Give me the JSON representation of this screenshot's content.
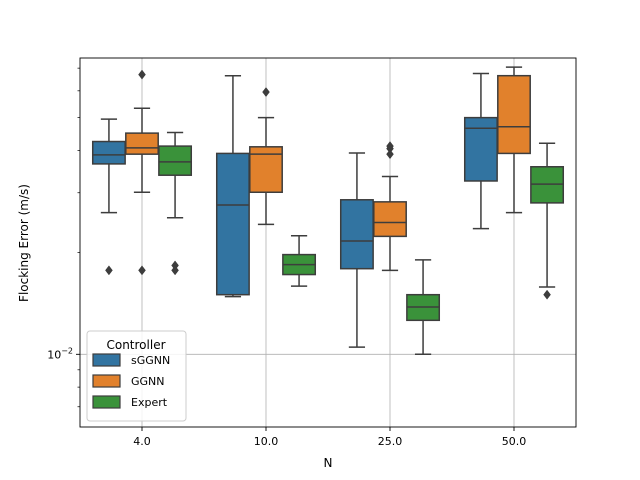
{
  "chart_data": {
    "type": "boxplot",
    "xlabel": "N",
    "ylabel": "Flocking Error (m/s)",
    "yscale": "log",
    "ylim": [
      0.0061,
      0.075
    ],
    "ytick_label": "10^-2",
    "ytick_value": 0.01,
    "grid": true,
    "legend_title": "Controller",
    "legend_position": "lower-left",
    "categories": [
      "4.0",
      "10.0",
      "25.0",
      "50.0"
    ],
    "series": [
      {
        "name": "sGGNN",
        "color": "#3274a1",
        "boxes": [
          {
            "whislo": 0.0262,
            "q1": 0.0365,
            "med": 0.0388,
            "q3": 0.0425,
            "whishi": 0.0495,
            "fliers": [
              0.0177
            ]
          },
          {
            "whislo": 0.0148,
            "q1": 0.015,
            "med": 0.0276,
            "q3": 0.0392,
            "whishi": 0.0665,
            "fliers": []
          },
          {
            "whislo": 0.0105,
            "q1": 0.0179,
            "med": 0.0216,
            "q3": 0.0286,
            "whishi": 0.0393,
            "fliers": []
          },
          {
            "whislo": 0.0235,
            "q1": 0.0325,
            "med": 0.0465,
            "q3": 0.05,
            "whishi": 0.0675,
            "fliers": []
          }
        ]
      },
      {
        "name": "GGNN",
        "color": "#e1812c",
        "boxes": [
          {
            "whislo": 0.0301,
            "q1": 0.039,
            "med": 0.0407,
            "q3": 0.045,
            "whishi": 0.0533,
            "fliers": [
              0.0177,
              0.067
            ]
          },
          {
            "whislo": 0.0242,
            "q1": 0.0301,
            "med": 0.039,
            "q3": 0.041,
            "whishi": 0.05,
            "fliers": [
              0.0595
            ]
          },
          {
            "whislo": 0.0177,
            "q1": 0.0223,
            "med": 0.0245,
            "q3": 0.0282,
            "whishi": 0.0335,
            "fliers": [
              0.039,
              0.0405,
              0.0412
            ]
          },
          {
            "whislo": 0.0262,
            "q1": 0.0392,
            "med": 0.047,
            "q3": 0.0665,
            "whishi": 0.0705,
            "fliers": []
          }
        ]
      },
      {
        "name": "Expert",
        "color": "#3a923a",
        "boxes": [
          {
            "whislo": 0.0253,
            "q1": 0.0338,
            "med": 0.037,
            "q3": 0.0412,
            "whishi": 0.0452,
            "fliers": [
              0.0177,
              0.0183
            ]
          },
          {
            "whislo": 0.0159,
            "q1": 0.0172,
            "med": 0.0184,
            "q3": 0.0197,
            "whishi": 0.0224,
            "fliers": []
          },
          {
            "whislo": 0.01,
            "q1": 0.0126,
            "med": 0.0138,
            "q3": 0.015,
            "whishi": 0.019,
            "fliers": []
          },
          {
            "whislo": 0.0158,
            "q1": 0.028,
            "med": 0.0318,
            "q3": 0.0358,
            "whishi": 0.042,
            "fliers": [
              0.015
            ]
          }
        ]
      }
    ]
  }
}
